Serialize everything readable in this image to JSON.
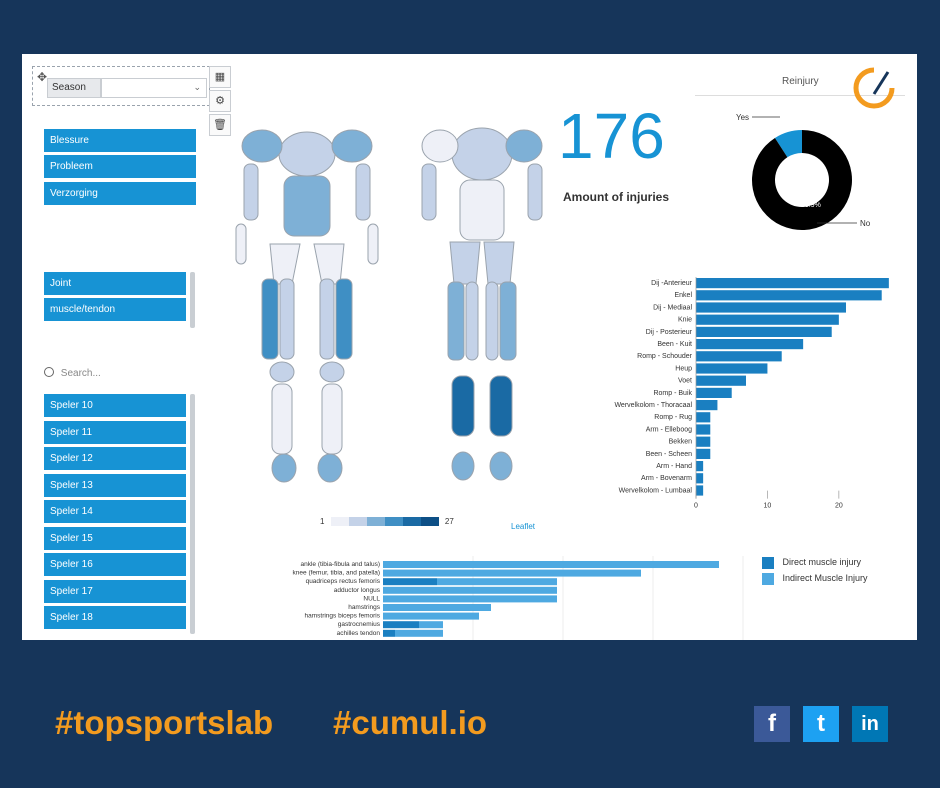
{
  "filter": {
    "season_label": "Season",
    "season_value": ""
  },
  "toolbar": {
    "table_icon": "table-icon",
    "settings_icon": "gear-icon",
    "delete_icon": "trash-icon"
  },
  "categories": [
    "Blessure",
    "Probleem",
    "Verzorging"
  ],
  "types": [
    "Joint",
    "muscle/tendon"
  ],
  "search": {
    "placeholder": "Search..."
  },
  "players": [
    "Speler 10",
    "Speler 11",
    "Speler 12",
    "Speler 13",
    "Speler 14",
    "Speler 15",
    "Speler 16",
    "Speler 17",
    "Speler 18"
  ],
  "kpi": {
    "value": "176",
    "label": "Amount of injuries"
  },
  "body_legend": {
    "min": "1",
    "max": "27",
    "colors": [
      "#eef0f7",
      "#c4d2e8",
      "#7eb0d6",
      "#3f8fc4",
      "#1a6aa4",
      "#0d4f86"
    ],
    "attribution": "Leaflet"
  },
  "reinjury": {
    "title": "Reinjury",
    "yes_label": "Yes",
    "no_label": "No",
    "no_percent_label": "90.9%",
    "colors": {
      "no": "#000000",
      "yes": "#1793d4"
    },
    "chart_data": {
      "type": "pie",
      "categories": [
        "No",
        "Yes"
      ],
      "values": [
        90.9,
        9.1
      ],
      "title": "Reinjury"
    }
  },
  "chart_data": [
    {
      "type": "bar",
      "orientation": "horizontal",
      "categories": [
        "Dij -Anterieur",
        "Enkel",
        "Dij - Mediaal",
        "Knie",
        "Dij - Posterieur",
        "Been - Kuit",
        "Romp - Schouder",
        "Heup",
        "Voet",
        "Romp - Buik",
        "Wervelkolom - Thoracaal",
        "Romp - Rug",
        "Arm - Elleboog",
        "Bekken",
        "Been - Scheen",
        "Arm - Hand",
        "Arm - Bovenarm",
        "Wervelkolom - Lumbaal"
      ],
      "values": [
        27,
        26,
        21,
        20,
        19,
        15,
        12,
        10,
        7,
        5,
        3,
        2,
        2,
        2,
        2,
        1,
        1,
        1
      ],
      "xticks": [
        "0",
        "10",
        "20"
      ],
      "xlim": [
        0,
        28
      ],
      "color": "#1a7fc1"
    },
    {
      "type": "bar",
      "orientation": "horizontal",
      "stacked": true,
      "categories": [
        "ankle (tibia-fibula and talus)",
        "knee (femur, tibia, and patella)",
        "quadriceps rectus femoris",
        "adductor longus",
        "NULL",
        "hamstrings",
        "hamstrings biceps femoris",
        "gastrocnemius",
        "achilles tendon"
      ],
      "series": [
        {
          "name": "Direct muscle injury",
          "values": [
            0,
            0,
            9,
            0,
            0,
            0,
            0,
            6,
            2
          ],
          "color": "#1a7fc1"
        },
        {
          "name": "Indirect Muscle Injury",
          "values": [
            56,
            43,
            20,
            29,
            29,
            18,
            16,
            4,
            8
          ],
          "color": "#4ea9e1"
        }
      ],
      "xlim": [
        0,
        60
      ]
    }
  ],
  "footer": {
    "tag1": "#topsportslab",
    "tag2": "#cumul.io",
    "social": [
      "f",
      "t",
      "in"
    ]
  }
}
